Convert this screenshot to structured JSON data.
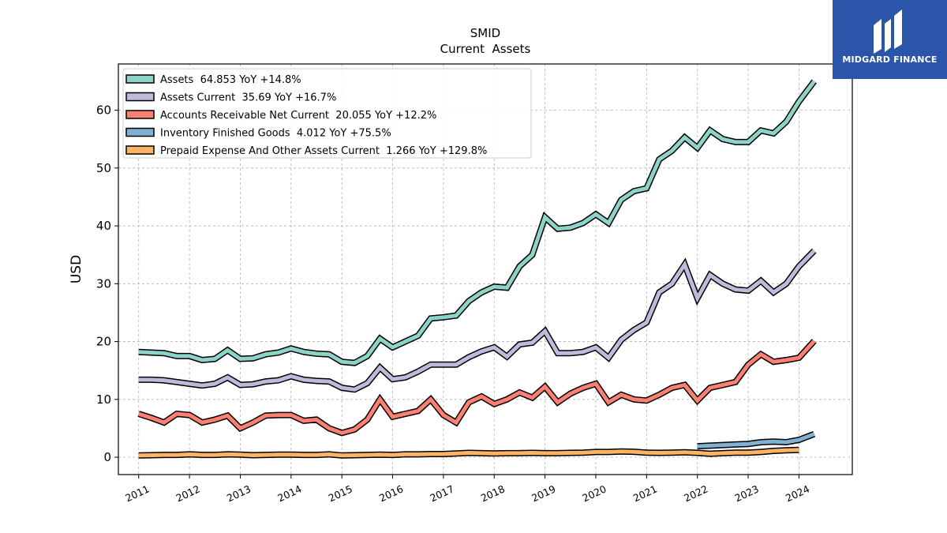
{
  "brand": {
    "name": "MIDGARD FINANCE",
    "bg_color": "#2a55a8"
  },
  "chart_data": {
    "type": "line",
    "title": "SMID",
    "subtitle": "Current  Assets",
    "xlabel": "",
    "ylabel": "USD",
    "xlim": [
      2010.6,
      2025.05
    ],
    "ylim": [
      -3,
      68
    ],
    "yticks": [
      0,
      10,
      20,
      30,
      40,
      50,
      60
    ],
    "xticks": [
      2011,
      2012,
      2013,
      2014,
      2015,
      2016,
      2017,
      2018,
      2019,
      2020,
      2021,
      2022,
      2023,
      2024
    ],
    "grid": true,
    "legend_position": "top-left",
    "series": [
      {
        "name": "Assets  64.853 YoY +14.8%",
        "color": "#8dd3c7",
        "x": [
          2011.0,
          2011.25,
          2011.5,
          2011.75,
          2012.0,
          2012.25,
          2012.5,
          2012.75,
          2013.0,
          2013.25,
          2013.5,
          2013.75,
          2014.0,
          2014.25,
          2014.5,
          2014.75,
          2015.0,
          2015.25,
          2015.5,
          2015.75,
          2016.0,
          2016.25,
          2016.5,
          2016.75,
          2017.0,
          2017.25,
          2017.5,
          2017.75,
          2018.0,
          2018.25,
          2018.5,
          2018.75,
          2019.0,
          2019.25,
          2019.5,
          2019.75,
          2020.0,
          2020.25,
          2020.5,
          2020.75,
          2021.0,
          2021.25,
          2021.5,
          2021.75,
          2022.0,
          2022.25,
          2022.5,
          2022.75,
          2023.0,
          2023.25,
          2023.5,
          2023.75,
          2024.0,
          2024.3
        ],
        "values": [
          18.2,
          18.1,
          18.0,
          17.5,
          17.5,
          16.8,
          17.0,
          18.5,
          17.0,
          17.1,
          17.8,
          18.1,
          18.8,
          18.2,
          17.9,
          17.8,
          16.5,
          16.3,
          17.5,
          20.5,
          19.0,
          20.0,
          21.0,
          24.0,
          24.2,
          24.5,
          27.0,
          28.5,
          29.5,
          29.3,
          33.0,
          35.0,
          41.5,
          39.5,
          39.7,
          40.5,
          42.0,
          40.5,
          44.5,
          46.0,
          46.5,
          51.5,
          53.0,
          55.3,
          53.5,
          56.5,
          55.0,
          54.5,
          54.5,
          56.5,
          56.0,
          58.0,
          61.5,
          65.0
        ]
      },
      {
        "name": "Assets Current  35.69 YoY +16.7%",
        "color": "#bebada",
        "x": [
          2011.0,
          2011.25,
          2011.5,
          2011.75,
          2012.0,
          2012.25,
          2012.5,
          2012.75,
          2013.0,
          2013.25,
          2013.5,
          2013.75,
          2014.0,
          2014.25,
          2014.5,
          2014.75,
          2015.0,
          2015.25,
          2015.5,
          2015.75,
          2016.0,
          2016.25,
          2016.5,
          2016.75,
          2017.0,
          2017.25,
          2017.5,
          2017.75,
          2018.0,
          2018.25,
          2018.5,
          2018.75,
          2019.0,
          2019.25,
          2019.5,
          2019.75,
          2020.0,
          2020.25,
          2020.5,
          2020.75,
          2021.0,
          2021.25,
          2021.5,
          2021.75,
          2022.0,
          2022.25,
          2022.5,
          2022.75,
          2023.0,
          2023.25,
          2023.5,
          2023.75,
          2024.0,
          2024.3
        ],
        "values": [
          13.4,
          13.4,
          13.3,
          13.0,
          12.7,
          12.4,
          12.7,
          13.8,
          12.5,
          12.6,
          13.1,
          13.3,
          14.0,
          13.4,
          13.2,
          13.1,
          12.0,
          11.7,
          12.8,
          15.5,
          13.5,
          13.8,
          14.8,
          16.0,
          16.0,
          16.0,
          17.3,
          18.3,
          19.0,
          17.4,
          19.5,
          19.8,
          21.8,
          18.0,
          18.0,
          18.2,
          19.0,
          17.2,
          20.3,
          22.0,
          23.3,
          28.5,
          30.0,
          33.3,
          27.5,
          31.5,
          30.0,
          29.0,
          28.8,
          30.5,
          28.5,
          30.0,
          33.0,
          35.7
        ]
      },
      {
        "name": "Accounts Receivable Net Current  20.055 YoY +12.2%",
        "color": "#fb8072",
        "x": [
          2011.0,
          2011.25,
          2011.5,
          2011.75,
          2012.0,
          2012.25,
          2012.5,
          2012.75,
          2013.0,
          2013.25,
          2013.5,
          2013.75,
          2014.0,
          2014.25,
          2014.5,
          2014.75,
          2015.0,
          2015.25,
          2015.5,
          2015.75,
          2016.0,
          2016.25,
          2016.5,
          2016.75,
          2017.0,
          2017.25,
          2017.5,
          2017.75,
          2018.0,
          2018.25,
          2018.5,
          2018.75,
          2019.0,
          2019.25,
          2019.5,
          2019.75,
          2020.0,
          2020.25,
          2020.5,
          2020.75,
          2021.0,
          2021.25,
          2021.5,
          2021.75,
          2022.0,
          2022.25,
          2022.5,
          2022.75,
          2023.0,
          2023.25,
          2023.5,
          2023.75,
          2024.0,
          2024.3
        ],
        "values": [
          7.5,
          6.8,
          6.0,
          7.5,
          7.3,
          6.0,
          6.5,
          7.2,
          5.0,
          6.0,
          7.2,
          7.3,
          7.3,
          6.3,
          6.5,
          5.0,
          4.2,
          4.8,
          6.5,
          10.0,
          7.0,
          7.5,
          8.0,
          10.0,
          7.3,
          6.0,
          9.5,
          10.5,
          9.2,
          10.0,
          11.2,
          10.3,
          12.2,
          9.5,
          11.0,
          12.0,
          12.7,
          9.5,
          10.8,
          10.0,
          9.8,
          10.8,
          12.0,
          12.5,
          9.8,
          12.0,
          12.5,
          13.0,
          16.0,
          17.8,
          16.5,
          16.8,
          17.2,
          20.1
        ]
      },
      {
        "name": "Inventory Finished Goods  4.012 YoY +75.5%",
        "color": "#80b1d3",
        "x": [
          2022.0,
          2022.25,
          2022.5,
          2022.75,
          2023.0,
          2023.25,
          2023.5,
          2023.75,
          2024.0,
          2024.3
        ],
        "values": [
          1.9,
          2.0,
          2.1,
          2.2,
          2.3,
          2.6,
          2.7,
          2.6,
          3.0,
          4.0
        ]
      },
      {
        "name": "Prepaid Expense And Other Assets Current  1.266 YoY +129.8%",
        "color": "#fdb462",
        "x": [
          2011.0,
          2011.25,
          2011.5,
          2011.75,
          2012.0,
          2012.25,
          2012.5,
          2012.75,
          2013.0,
          2013.25,
          2013.5,
          2013.75,
          2014.0,
          2014.25,
          2014.5,
          2014.75,
          2015.0,
          2015.25,
          2015.5,
          2015.75,
          2016.0,
          2016.25,
          2016.5,
          2016.75,
          2017.0,
          2017.25,
          2017.5,
          2017.75,
          2018.0,
          2018.25,
          2018.5,
          2018.75,
          2019.0,
          2019.25,
          2019.5,
          2019.75,
          2020.0,
          2020.25,
          2020.5,
          2020.75,
          2021.0,
          2021.25,
          2021.5,
          2021.75,
          2022.0,
          2022.25,
          2022.5,
          2022.75,
          2023.0,
          2023.25,
          2023.5,
          2023.75,
          2024.0
        ],
        "values": [
          0.3,
          0.35,
          0.4,
          0.4,
          0.5,
          0.4,
          0.4,
          0.5,
          0.45,
          0.35,
          0.4,
          0.45,
          0.45,
          0.4,
          0.4,
          0.5,
          0.3,
          0.35,
          0.4,
          0.45,
          0.4,
          0.5,
          0.5,
          0.55,
          0.55,
          0.65,
          0.75,
          0.7,
          0.65,
          0.7,
          0.7,
          0.75,
          0.7,
          0.7,
          0.75,
          0.8,
          0.9,
          0.9,
          1.0,
          0.95,
          0.8,
          0.75,
          0.8,
          0.85,
          0.75,
          0.6,
          0.7,
          0.8,
          0.8,
          0.9,
          1.1,
          1.2,
          1.27
        ]
      }
    ]
  }
}
